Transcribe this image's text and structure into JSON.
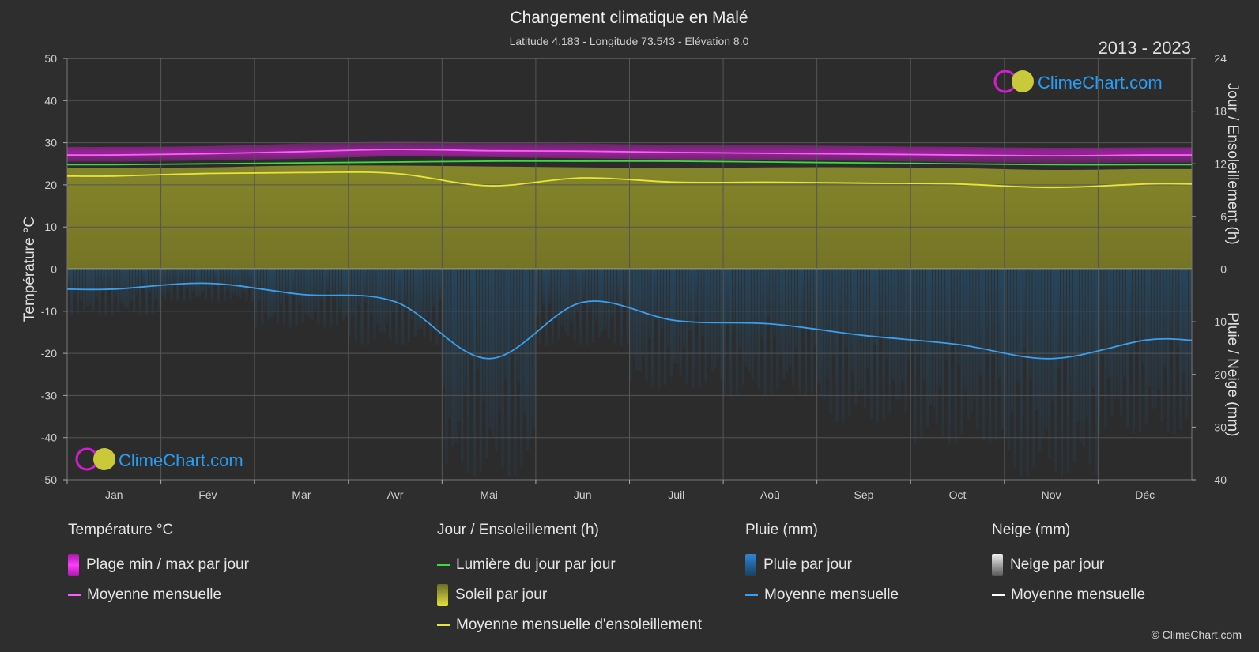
{
  "title": "Changement climatique en Malé",
  "subtitle": "Latitude 4.183 - Longitude 73.543 - Élévation 8.0",
  "period": "2013 - 2023",
  "logo_text": "ClimeChart.com",
  "copyright": "© ClimeChart.com",
  "colors": {
    "background": "#2e2e2e",
    "temp_range": "#d21ed2",
    "temp_mean": "#ff5cff",
    "daylight": "#3adb3a",
    "sunshine_fill": "#a3a32a",
    "sunshine_mean": "#e5e53a",
    "rain_fill": "#1f5d8c",
    "rain_mean": "#3aa0ee",
    "logo_blue": "#2a9df4"
  },
  "chart_data": {
    "type": "line",
    "months": [
      "Jan",
      "Fév",
      "Mar",
      "Avr",
      "Mai",
      "Jun",
      "Juil",
      "Aoû",
      "Sep",
      "Oct",
      "Nov",
      "Déc"
    ],
    "axes": {
      "left": {
        "label": "Température °C",
        "min": -50,
        "max": 50,
        "ticks": [
          "50",
          "40",
          "30",
          "20",
          "10",
          "0",
          "-10",
          "-20",
          "-30",
          "-40",
          "-50"
        ]
      },
      "right_top": {
        "label": "Jour / Ensoleillement (h)",
        "min": 0,
        "max": 24,
        "ticks": [
          "24",
          "18",
          "12",
          "6",
          "0"
        ]
      },
      "right_bottom": {
        "label": "Pluie / Neige (mm)",
        "min": 0,
        "max": 40,
        "ticks": [
          "0",
          "10",
          "20",
          "30",
          "40"
        ]
      }
    },
    "grid": true,
    "series": [
      {
        "name": "Plage min / max par jour",
        "axis": "left",
        "min": [
          25.5,
          25.8,
          26.2,
          26.8,
          26.6,
          26.3,
          26.0,
          25.9,
          25.7,
          25.4,
          25.1,
          25.3
        ],
        "max": [
          29.0,
          29.2,
          29.8,
          30.3,
          30.0,
          29.8,
          29.5,
          29.4,
          29.2,
          29.0,
          28.8,
          28.9
        ]
      },
      {
        "name": "Moyenne mensuelle",
        "axis": "left",
        "values": [
          27.1,
          27.4,
          27.9,
          28.4,
          28.1,
          28.0,
          27.7,
          27.5,
          27.3,
          27.1,
          26.9,
          27.1
        ]
      },
      {
        "name": "Lumière du jour par jour",
        "axis": "right_top",
        "values": [
          11.9,
          12.0,
          12.1,
          12.2,
          12.3,
          12.3,
          12.3,
          12.2,
          12.1,
          12.0,
          11.9,
          11.9
        ]
      },
      {
        "name": "Soleil par jour",
        "axis": "right_top",
        "values": [
          11.5,
          11.6,
          11.8,
          11.8,
          11.7,
          11.6,
          11.5,
          11.6,
          11.6,
          11.5,
          11.3,
          11.4
        ]
      },
      {
        "name": "Moyenne mensuelle d'ensoleillement",
        "axis": "right_top",
        "values": [
          10.6,
          10.9,
          11.0,
          10.9,
          9.5,
          10.4,
          9.9,
          9.9,
          9.8,
          9.7,
          9.3,
          9.7
        ]
      },
      {
        "name": "Pluie par jour",
        "axis": "right_bottom",
        "values": [
          3.8,
          2.7,
          4.8,
          6.2,
          17.0,
          6.3,
          9.8,
          10.4,
          12.6,
          14.3,
          17.0,
          13.5
        ]
      },
      {
        "name": "Moyenne mensuelle",
        "axis": "right_bottom",
        "values": [
          3.8,
          2.7,
          4.8,
          6.2,
          17.0,
          6.3,
          9.8,
          10.4,
          12.6,
          14.3,
          17.0,
          13.5
        ]
      }
    ]
  },
  "legend": {
    "groups": [
      {
        "title": "Température °C",
        "items": [
          {
            "label": "Plage min / max par jour",
            "swatch": "box",
            "color": "#d21ed2"
          },
          {
            "label": "Moyenne mensuelle",
            "swatch": "line",
            "color": "#ff5cff"
          }
        ]
      },
      {
        "title": "Jour / Ensoleillement (h)",
        "items": [
          {
            "label": "Lumière du jour par jour",
            "swatch": "line",
            "color": "#3adb3a"
          },
          {
            "label": "Soleil par jour",
            "swatch": "box",
            "color": "#c6c63a"
          },
          {
            "label": "Moyenne mensuelle d'ensoleillement",
            "swatch": "line",
            "color": "#e5e53a"
          }
        ]
      },
      {
        "title": "Pluie (mm)",
        "items": [
          {
            "label": "Pluie par jour",
            "swatch": "box",
            "color": "#2f86d6"
          },
          {
            "label": "Moyenne mensuelle",
            "swatch": "line",
            "color": "#3aa0ee"
          }
        ]
      },
      {
        "title": "Neige (mm)",
        "items": [
          {
            "label": "Neige par jour",
            "swatch": "box",
            "color": "#d0d0d0"
          },
          {
            "label": "Moyenne mensuelle",
            "swatch": "line",
            "color": "#ffffff"
          }
        ]
      }
    ]
  }
}
